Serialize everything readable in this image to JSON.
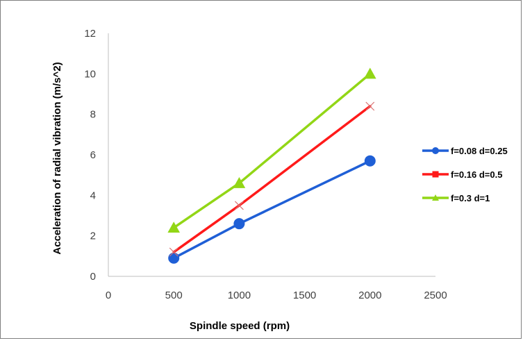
{
  "chart_data": {
    "type": "line",
    "title": "",
    "xlabel": "Spindle speed (rpm)",
    "ylabel": "Acceleration of radial vibration (m/s^2)",
    "xlim": [
      0,
      2500
    ],
    "ylim": [
      0,
      12
    ],
    "x_ticks": [
      "0",
      "500",
      "1000",
      "1500",
      "2000",
      "2500"
    ],
    "y_ticks": [
      "0",
      "2",
      "4",
      "6",
      "8",
      "10",
      "12"
    ],
    "grid": false,
    "legend_position": "right",
    "series": [
      {
        "name": "f=0.08 d=0.25",
        "color": "#1f5fd6",
        "marker": "circle",
        "x": [
          500,
          1000,
          2000
        ],
        "y": [
          0.9,
          2.6,
          5.7
        ]
      },
      {
        "name": "f=0.16  d=0.5",
        "color": "#ff1a1a",
        "marker": "square",
        "x": [
          500,
          1000,
          2000
        ],
        "y": [
          1.2,
          3.5,
          8.4
        ]
      },
      {
        "name": "f=0.3  d=1",
        "color": "#92d616",
        "marker": "triangle",
        "x": [
          500,
          1000,
          2000
        ],
        "y": [
          2.4,
          4.6,
          10.0
        ]
      }
    ]
  }
}
